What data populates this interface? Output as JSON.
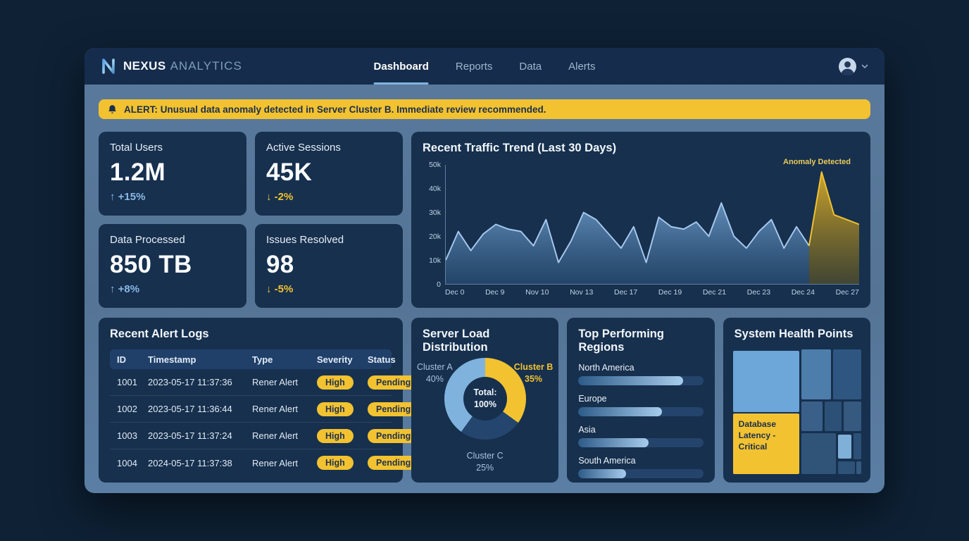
{
  "header": {
    "brand": {
      "name_bold": "NEXUS",
      "name_light": "ANALYTICS"
    },
    "tabs": [
      {
        "label": "Dashboard",
        "active": true
      },
      {
        "label": "Reports",
        "active": false
      },
      {
        "label": "Data",
        "active": false
      },
      {
        "label": "Alerts",
        "active": false
      }
    ]
  },
  "alert_banner": {
    "prefix": "ALERT:",
    "message": "Unusual data anomaly detected in Server Cluster B. Immediate review recommended."
  },
  "stats": [
    {
      "label": "Total Users",
      "value": "1.2M",
      "arrow": "↑",
      "delta": "+15%",
      "direction": "up"
    },
    {
      "label": "Active Sessions",
      "value": "45K",
      "arrow": "↓",
      "delta": "-2%",
      "direction": "down"
    },
    {
      "label": "Data Processed",
      "value": "850 TB",
      "arrow": "↑",
      "delta": "+8%",
      "direction": "up"
    },
    {
      "label": "Issues Resolved",
      "value": "98",
      "arrow": "↓",
      "delta": "-5%",
      "direction": "down"
    }
  ],
  "chart_data": [
    {
      "id": "traffic_trend",
      "type": "line",
      "title": "Recent Traffic Trend (Last 30 Days)",
      "annotation": "Anomaly Detected",
      "ylabel": "",
      "xlabel": "",
      "ylim": [
        0,
        50000
      ],
      "y_ticks": [
        "50k",
        "40k",
        "30k",
        "20k",
        "10k",
        "0"
      ],
      "x_ticks": [
        "Dec 0",
        "Dec 9",
        "Nov 10",
        "Nov 13",
        "Dec 17",
        "Dec 19",
        "Dec 21",
        "Dec 23",
        "Dec 24",
        "Dec 27"
      ],
      "values_unit": "thousands",
      "values": [
        10,
        22,
        14,
        21,
        25,
        23,
        22,
        16,
        27,
        9,
        18,
        30,
        27,
        21,
        15,
        24,
        9,
        28,
        24,
        23,
        26,
        20,
        34,
        20,
        15,
        22,
        27,
        15,
        24,
        16,
        47,
        29,
        27,
        25
      ],
      "anomaly_start_index": 29,
      "colors": {
        "line": "#a6c8ec",
        "anomaly": "#f2c230"
      }
    },
    {
      "id": "server_load",
      "type": "pie",
      "title": "Server Load Distribution",
      "center_label": "Total:",
      "center_value": "100%",
      "slices": [
        {
          "name": "Cluster B",
          "value": 35,
          "pct": "35%",
          "color": "#f2c230"
        },
        {
          "name": "Cluster C",
          "value": 25,
          "pct": "25%",
          "color": "#24466e"
        },
        {
          "name": "Cluster A",
          "value": 40,
          "pct": "40%",
          "color": "#7fb3dd"
        }
      ]
    },
    {
      "id": "regions",
      "type": "bar",
      "title": "Top Performing Regions",
      "xlim": [
        0,
        100
      ],
      "items": [
        {
          "label": "North America",
          "value": 84
        },
        {
          "label": "Europe",
          "value": 67
        },
        {
          "label": "Asia",
          "value": 56
        },
        {
          "label": "South America",
          "value": 38
        }
      ]
    },
    {
      "id": "system_health",
      "type": "heatmap",
      "title": "System Health Points",
      "critical_label": "Database Latency - Critical",
      "tiles": [
        {
          "x": 0,
          "y": 3,
          "w": 52,
          "h": 48,
          "color": "#6da6d8"
        },
        {
          "x": 0,
          "y": 52,
          "w": 52,
          "h": 48,
          "color": "#f2c230",
          "label": "Database Latency - Critical"
        },
        {
          "x": 53.5,
          "y": 1.5,
          "w": 23,
          "h": 39.5,
          "color": "#4d7dab"
        },
        {
          "x": 78,
          "y": 1.5,
          "w": 22,
          "h": 39.5,
          "color": "#2e5680"
        },
        {
          "x": 53.5,
          "y": 42.5,
          "w": 16.5,
          "h": 23.5,
          "color": "#3a608a"
        },
        {
          "x": 71.5,
          "y": 42.5,
          "w": 13.5,
          "h": 23.5,
          "color": "#2c5076"
        },
        {
          "x": 86.5,
          "y": 42.5,
          "w": 13.5,
          "h": 23.5,
          "color": "#35597f"
        },
        {
          "x": 53.5,
          "y": 67.5,
          "w": 27,
          "h": 32.5,
          "color": "#305478"
        },
        {
          "x": 82,
          "y": 69,
          "w": 10.5,
          "h": 19,
          "color": "#7fb0d8"
        },
        {
          "x": 94,
          "y": 67.5,
          "w": 6,
          "h": 21,
          "color": "#2c5076"
        },
        {
          "x": 82,
          "y": 90,
          "w": 13.5,
          "h": 10,
          "color": "#2e5278"
        },
        {
          "x": 96.5,
          "y": 90,
          "w": 3.5,
          "h": 10,
          "color": "#35597f"
        }
      ]
    }
  ],
  "alert_logs": {
    "title": "Recent Alert Logs",
    "columns": {
      "id": "ID",
      "timestamp": "Timestamp",
      "type": "Type",
      "severity": "Severity",
      "status": "Status"
    },
    "rows": [
      {
        "id": "1001",
        "timestamp": "2023-05-17 11:37:36",
        "type": "Rener Alert",
        "severity": "High",
        "status": "Pending"
      },
      {
        "id": "1002",
        "timestamp": "2023-05-17 11:36:44",
        "type": "Rener Alert",
        "severity": "High",
        "status": "Pending"
      },
      {
        "id": "1003",
        "timestamp": "2023-05-17 11:37:24",
        "type": "Rener Alert",
        "severity": "High",
        "status": "Pending"
      },
      {
        "id": "1004",
        "timestamp": "2024-05-17 11:37:38",
        "type": "Rener Alert",
        "severity": "High",
        "status": "Pending"
      }
    ]
  }
}
